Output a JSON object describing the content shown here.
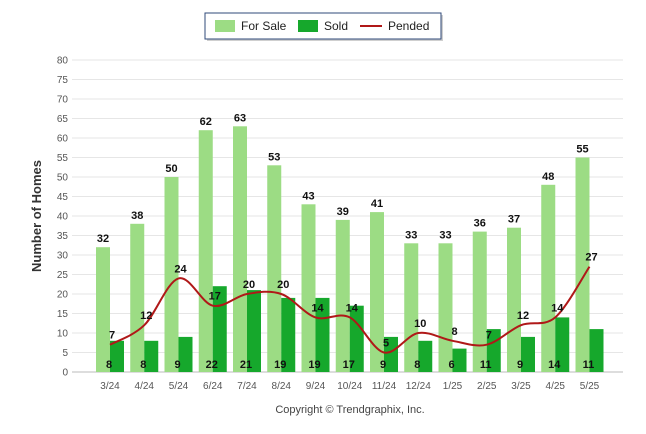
{
  "chart_data": {
    "type": "bar",
    "categories": [
      "3/24",
      "4/24",
      "5/24",
      "6/24",
      "7/24",
      "8/24",
      "9/24",
      "10/24",
      "11/24",
      "12/24",
      "1/25",
      "2/25",
      "3/25",
      "4/25",
      "5/25"
    ],
    "series": [
      {
        "name": "For Sale",
        "kind": "bar",
        "color": "#9cdc84",
        "values": [
          32,
          38,
          50,
          62,
          63,
          53,
          43,
          39,
          41,
          33,
          33,
          36,
          37,
          48,
          55
        ]
      },
      {
        "name": "Sold",
        "kind": "bar",
        "color": "#16a82c",
        "values": [
          8,
          8,
          9,
          22,
          21,
          19,
          19,
          17,
          9,
          8,
          6,
          11,
          9,
          14,
          11
        ]
      },
      {
        "name": "Pended",
        "kind": "line",
        "color": "#b01818",
        "values": [
          7,
          12,
          24,
          17,
          20,
          20,
          14,
          14,
          5,
          10,
          8,
          7,
          12,
          14,
          27
        ]
      }
    ],
    "title": "",
    "xlabel": "",
    "ylabel": "Number of Homes",
    "ylim": [
      0,
      80
    ],
    "yticks": [
      0,
      5,
      10,
      15,
      20,
      25,
      30,
      35,
      40,
      45,
      50,
      55,
      60,
      65,
      70,
      75,
      80
    ],
    "grid": true,
    "legend_position": "top-center"
  },
  "footer": {
    "copyright": "Copyright © Trendgraphix, Inc."
  }
}
